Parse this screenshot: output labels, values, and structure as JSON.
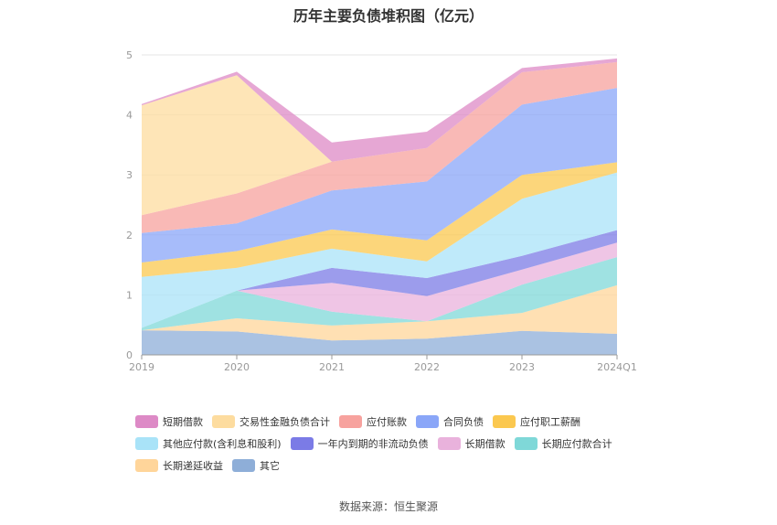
{
  "chart_data": {
    "type": "area",
    "stacked": true,
    "title": "历年主要负债堆积图（亿元）",
    "x": [
      "2019",
      "2020",
      "2021",
      "2022",
      "2023",
      "2024Q1"
    ],
    "ylim": [
      0,
      5
    ],
    "yticks": [
      0,
      1,
      2,
      3,
      4,
      5
    ],
    "grid": true,
    "legend_position": "bottom",
    "series": [
      {
        "name": "其它",
        "color": "#8eaed8",
        "values": [
          0.41,
          0.39,
          0.24,
          0.27,
          0.4,
          0.35
        ]
      },
      {
        "name": "长期递延收益",
        "color": "#ffd59a",
        "values": [
          0.0,
          0.22,
          0.25,
          0.29,
          0.3,
          0.81
        ]
      },
      {
        "name": "长期应付款合计",
        "color": "#7fd8d8",
        "values": [
          0.04,
          0.46,
          0.23,
          0.0,
          0.47,
          0.47
        ]
      },
      {
        "name": "长期借款",
        "color": "#e9b2dc",
        "values": [
          0.0,
          0.0,
          0.48,
          0.42,
          0.25,
          0.24
        ]
      },
      {
        "name": "一年内到期的非流动负债",
        "color": "#7b7be6",
        "values": [
          0.0,
          0.0,
          0.25,
          0.3,
          0.23,
          0.21
        ]
      },
      {
        "name": "其他应付款(含利息和股利)",
        "color": "#a9e3f8",
        "values": [
          0.85,
          0.38,
          0.32,
          0.28,
          0.95,
          0.96
        ]
      },
      {
        "name": "应付职工薪酬",
        "color": "#fbc84f",
        "values": [
          0.24,
          0.28,
          0.32,
          0.35,
          0.4,
          0.17
        ]
      },
      {
        "name": "合同负债",
        "color": "#8aa6f8",
        "values": [
          0.49,
          0.46,
          0.65,
          0.98,
          1.17,
          1.24
        ]
      },
      {
        "name": "应付账款",
        "color": "#f7a29e",
        "values": [
          0.3,
          0.5,
          0.48,
          0.56,
          0.54,
          0.43
        ]
      },
      {
        "name": "交易性金融负债合计",
        "color": "#fddc9f",
        "values": [
          1.83,
          1.97,
          0.0,
          0.0,
          0.0,
          0.0
        ]
      },
      {
        "name": "短期借款",
        "color": "#dd8ac6",
        "values": [
          0.02,
          0.06,
          0.32,
          0.27,
          0.07,
          0.06
        ]
      }
    ]
  },
  "legend_rows": [
    [
      {
        "label": "短期借款",
        "color": "#dd8ac6"
      },
      {
        "label": "交易性金融负债合计",
        "color": "#fddc9f"
      },
      {
        "label": "应付账款",
        "color": "#f7a29e"
      },
      {
        "label": "合同负债",
        "color": "#8aa6f8"
      },
      {
        "label": "应付职工薪酬",
        "color": "#fbc84f"
      }
    ],
    [
      {
        "label": "其他应付款(含利息和股利)",
        "color": "#a9e3f8"
      },
      {
        "label": "一年内到期的非流动负债",
        "color": "#7b7be6"
      },
      {
        "label": "长期借款",
        "color": "#e9b2dc"
      },
      {
        "label": "长期应付款合计",
        "color": "#7fd8d8"
      }
    ],
    [
      {
        "label": "长期递延收益",
        "color": "#ffd59a"
      },
      {
        "label": "其它",
        "color": "#8eaed8"
      }
    ]
  ],
  "source": "数据来源：恒生聚源"
}
